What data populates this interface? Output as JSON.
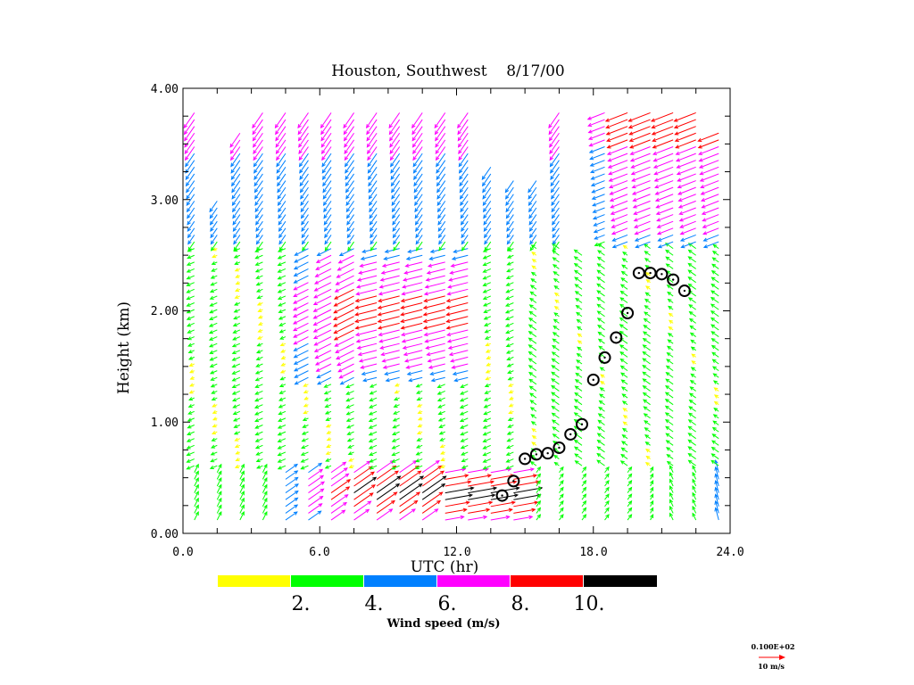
{
  "chart_data": {
    "type": "vector_field",
    "title": "Houston, Southwest    8/17/00",
    "xlabel": "UTC (hr)",
    "ylabel": "Height (km)",
    "xlim": [
      0,
      24
    ],
    "ylim": [
      0,
      4
    ],
    "x_ticks": [
      "0.0",
      "6.0",
      "12.0",
      "18.0",
      "24.0"
    ],
    "x_tick_values": [
      0,
      6,
      12,
      18,
      24
    ],
    "y_ticks": [
      "0.00",
      "1.00",
      "2.00",
      "3.00",
      "4.00"
    ],
    "y_tick_values": [
      0,
      1,
      2,
      3,
      4
    ],
    "colorbar": {
      "title": "Wind speed (m/s)",
      "colors": [
        "#ffff00",
        "#00ff00",
        "#0080ff",
        "#ff00ff",
        "#ff0000",
        "#000000"
      ],
      "labels": [
        "2.",
        "4.",
        "6.",
        "8.",
        "10."
      ],
      "bounds": [
        0,
        2,
        4,
        6,
        8,
        10,
        12
      ]
    },
    "key": {
      "scale_label": "0.100E+02",
      "unit_label": "10 m/s",
      "color": "#ff0000"
    },
    "boundary_layer_height": {
      "marker": "circle",
      "x": [
        14.0,
        14.5,
        15.0,
        15.5,
        16.0,
        16.5,
        17.0,
        17.5,
        18.0,
        18.5,
        19.0,
        19.5,
        20.0,
        20.5,
        21.0,
        21.5,
        22.0
      ],
      "y": [
        0.34,
        0.47,
        0.67,
        0.71,
        0.72,
        0.77,
        0.89,
        0.98,
        1.38,
        1.58,
        1.76,
        1.98,
        2.34,
        2.34,
        2.33,
        2.28,
        2.18
      ]
    },
    "wind_profile_times": [
      0.5,
      1.5,
      2.5,
      3.5,
      4.5,
      5.5,
      6.5,
      7.5,
      8.5,
      9.5,
      10.5,
      11.5,
      12.5,
      13.5,
      14.5,
      15.5,
      16.5,
      17.5,
      18.5,
      19.5,
      20.5,
      21.5,
      22.5,
      23.5
    ],
    "wind_profile_top_km": [
      3.8,
      3.0,
      3.65,
      3.8,
      3.8,
      3.8,
      3.8,
      3.8,
      3.8,
      3.8,
      3.8,
      3.8,
      3.8,
      3.35,
      3.2,
      3.2,
      3.8,
      2.5,
      3.8,
      3.8,
      3.8,
      3.8,
      3.8,
      3.6
    ]
  }
}
